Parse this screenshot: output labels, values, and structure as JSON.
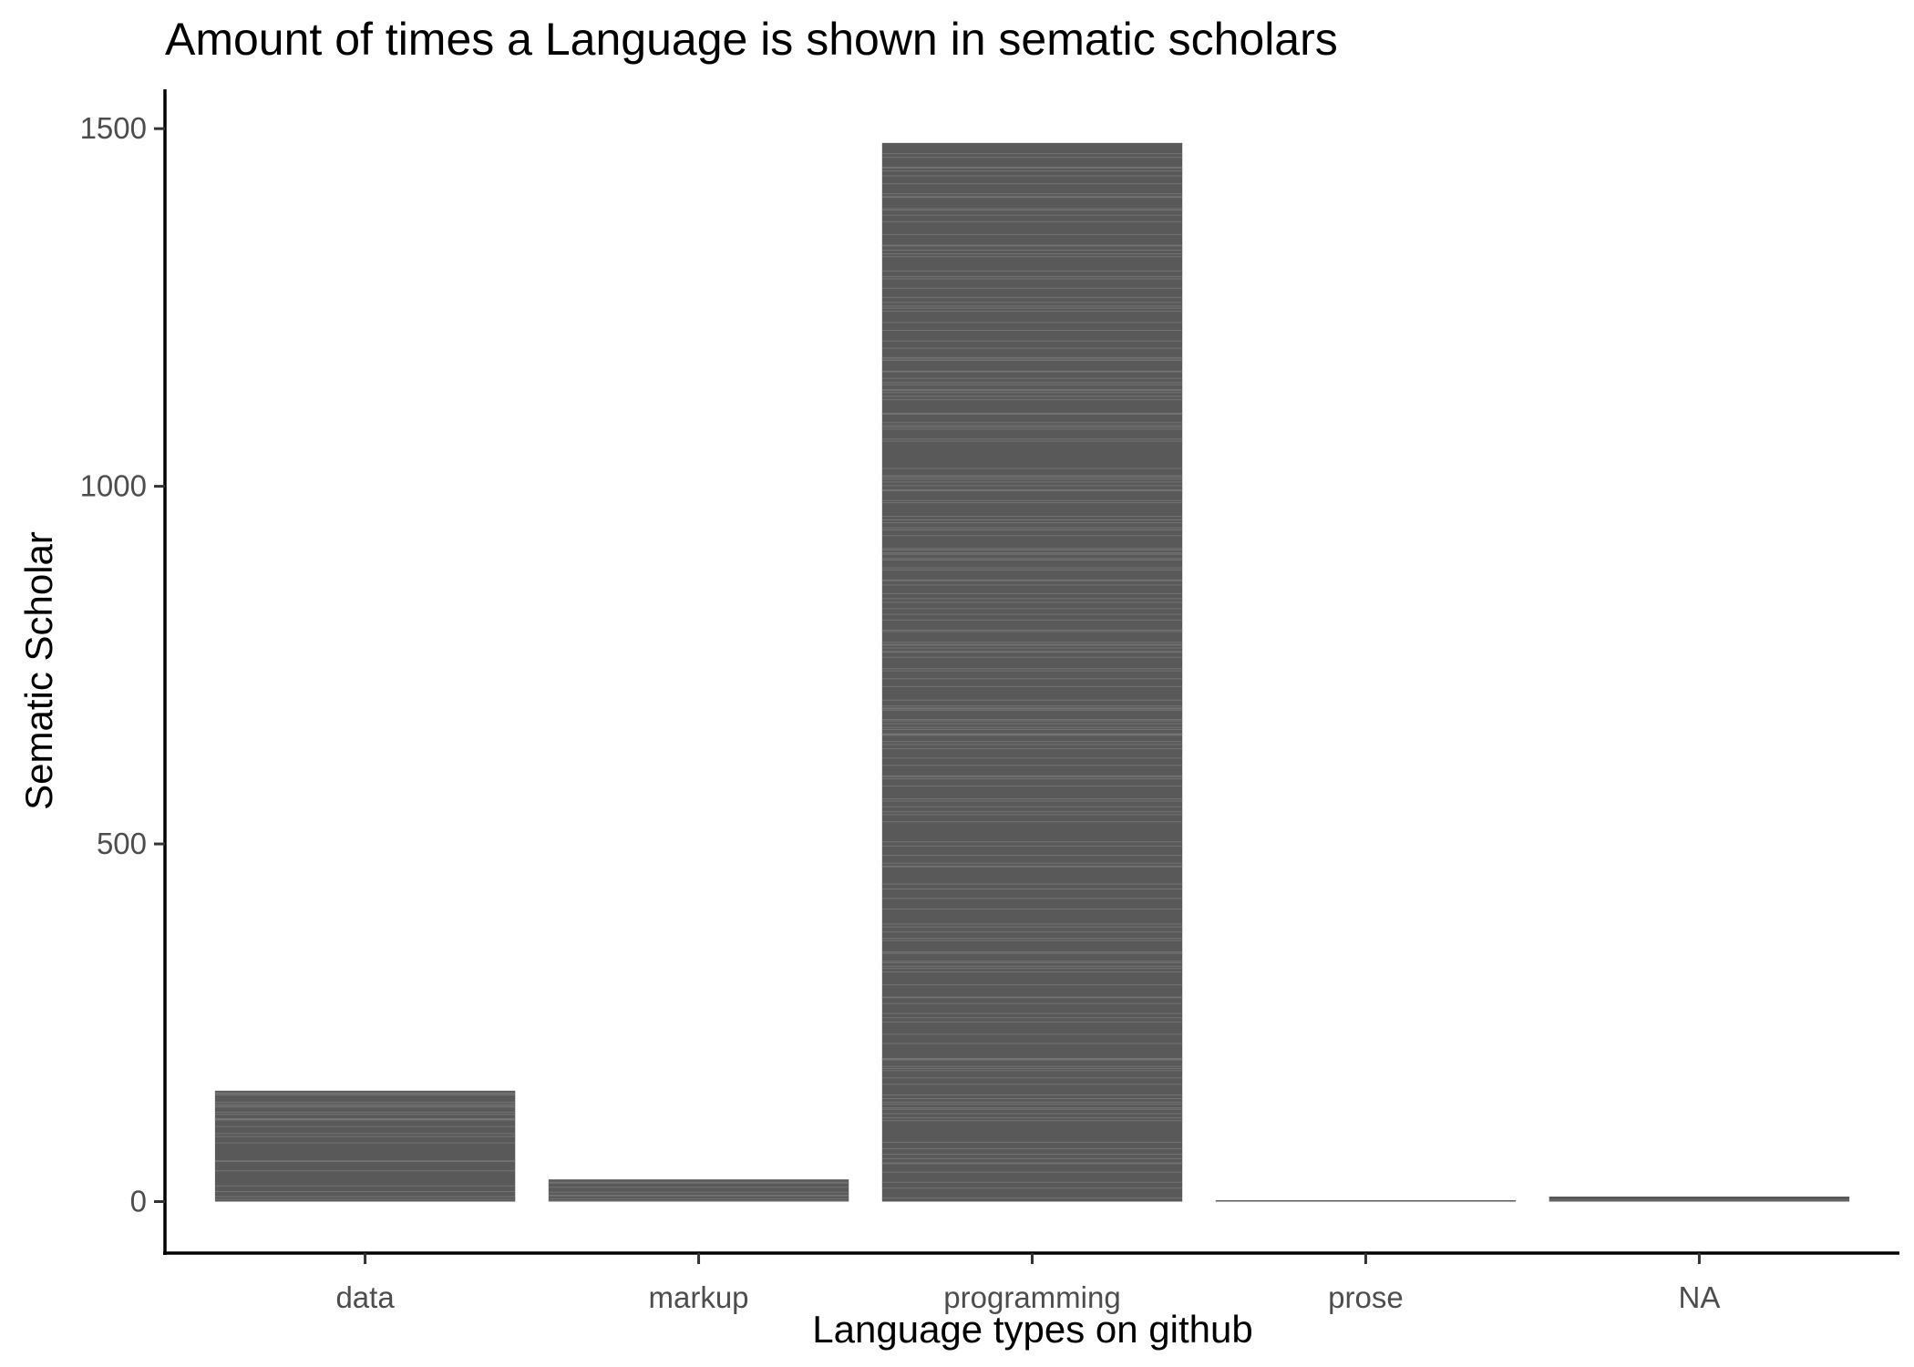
{
  "chart_data": {
    "type": "bar",
    "title": "Amount of times a Language is shown in sematic scholars",
    "xlabel": "Language types on github",
    "ylabel": "Sematic Scholar",
    "categories": [
      "data",
      "markup",
      "programming",
      "prose",
      "NA"
    ],
    "values": [
      155,
      31,
      1480,
      1,
      7
    ],
    "y_ticks": [
      0,
      500,
      1000,
      1500
    ],
    "ylim": [
      -72,
      1555
    ],
    "grid": false,
    "legend": "none",
    "bar_color": "#595959",
    "stripe_color": "#7a7a7a"
  }
}
